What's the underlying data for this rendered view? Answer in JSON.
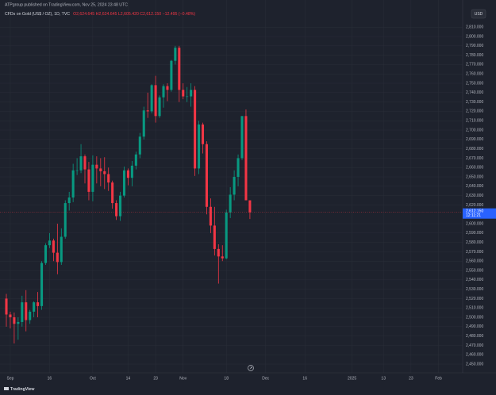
{
  "chart_data": {
    "type": "candlestick",
    "publisher_note": "ATPgroup published on TradingView.com, Nov 25, 2024 23:48 UTC",
    "title": "CFDs on Gold (US$ / OZ), 1D, TVC",
    "ohlc_text": "O2,624.645 H2,624.645 L2,605.420 C2,612.150 −12.495 (−0.48%)",
    "currency": "USD",
    "logo": "TradingView",
    "up_color": "#089981",
    "down_color": "#f23645",
    "grid": true,
    "last_price": {
      "value": 2612.15,
      "label": "2,612.150"
    },
    "countdown": "12:11:21",
    "open": [
      2520,
      2503,
      2500,
      2493,
      2495,
      2516,
      2497,
      2506,
      2516,
      2512,
      2558,
      2577,
      2582,
      2569,
      2559,
      2586,
      2622,
      2628,
      2657,
      2657,
      2672,
      2658,
      2634,
      2663,
      2659,
      2656,
      2653,
      2644,
      2622,
      2608,
      2630,
      2657,
      2649,
      2662,
      2674,
      2693,
      2721,
      2720,
      2748,
      2715,
      2735,
      2747,
      2743,
      2774,
      2788,
      2743,
      2736,
      2736,
      2743,
      2659,
      2706,
      2685,
      2618,
      2598,
      2573,
      2565,
      2563,
      2612,
      2631,
      2650,
      2670,
      2715,
      2625
    ],
    "high": [
      2525,
      2506,
      2505,
      2500,
      2523,
      2529,
      2508,
      2517,
      2527,
      2560,
      2579,
      2590,
      2584,
      2600,
      2595,
      2625,
      2634,
      2664,
      2670,
      2685,
      2674,
      2666,
      2673,
      2672,
      2670,
      2671,
      2660,
      2646,
      2625,
      2634,
      2661,
      2659,
      2667,
      2677,
      2697,
      2725,
      2740,
      2749,
      2758,
      2737,
      2749,
      2750,
      2775,
      2790,
      2790,
      2750,
      2746,
      2750,
      2747,
      2710,
      2708,
      2688,
      2627,
      2618,
      2578,
      2577,
      2615,
      2639,
      2657,
      2674,
      2715,
      2722,
      2625
    ],
    "low": [
      2490,
      2488,
      2472,
      2476,
      2490,
      2485,
      2493,
      2500,
      2500,
      2508,
      2556,
      2574,
      2560,
      2546,
      2556,
      2584,
      2614,
      2623,
      2652,
      2654,
      2643,
      2625,
      2624,
      2643,
      2640,
      2637,
      2635,
      2616,
      2604,
      2603,
      2628,
      2641,
      2640,
      2658,
      2670,
      2690,
      2713,
      2718,
      2708,
      2713,
      2724,
      2731,
      2741,
      2770,
      2730,
      2733,
      2730,
      2725,
      2651,
      2653,
      2675,
      2610,
      2590,
      2566,
      2536,
      2560,
      2562,
      2606,
      2625,
      2640,
      2668,
      2625,
      2605
    ],
    "close": [
      2503,
      2500,
      2493,
      2495,
      2516,
      2497,
      2506,
      2516,
      2512,
      2558,
      2577,
      2582,
      2569,
      2559,
      2586,
      2622,
      2628,
      2657,
      2657,
      2672,
      2658,
      2634,
      2663,
      2659,
      2656,
      2653,
      2644,
      2622,
      2608,
      2630,
      2657,
      2649,
      2662,
      2674,
      2693,
      2721,
      2720,
      2748,
      2715,
      2735,
      2747,
      2743,
      2774,
      2788,
      2743,
      2736,
      2736,
      2743,
      2659,
      2706,
      2685,
      2618,
      2598,
      2573,
      2565,
      2563,
      2612,
      2631,
      2650,
      2670,
      2715,
      2625,
      2612.15
    ],
    "xlim": [
      -1.616,
      116.16
    ],
    "xticks": [
      {
        "value": 1,
        "label": "Sep"
      },
      {
        "value": 11,
        "label": "16"
      },
      {
        "value": 22,
        "label": "Oct"
      },
      {
        "value": 31,
        "label": "14"
      },
      {
        "value": 38,
        "label": "23"
      },
      {
        "value": 45,
        "label": "Nov"
      },
      {
        "value": 56,
        "label": "18"
      },
      {
        "value": 66,
        "label": "Dec"
      },
      {
        "value": 76,
        "label": "16"
      },
      {
        "value": 88,
        "label": "2025"
      },
      {
        "value": 96,
        "label": "13"
      },
      {
        "value": 103,
        "label": "23"
      },
      {
        "value": 110,
        "label": "Feb"
      }
    ],
    "ylim": [
      2440.7,
      2839
    ],
    "yticks": [
      {
        "value": 2450,
        "label": "2,450.000"
      },
      {
        "value": 2460,
        "label": "2,460.000"
      },
      {
        "value": 2470,
        "label": "2,470.000"
      },
      {
        "value": 2480,
        "label": "2,480.000"
      },
      {
        "value": 2490,
        "label": "2,490.000"
      },
      {
        "value": 2500,
        "label": "2,500.000"
      },
      {
        "value": 2510,
        "label": "2,510.000"
      },
      {
        "value": 2520,
        "label": "2,520.000"
      },
      {
        "value": 2530,
        "label": "2,530.000"
      },
      {
        "value": 2540,
        "label": "2,540.000"
      },
      {
        "value": 2550,
        "label": "2,550.000"
      },
      {
        "value": 2560,
        "label": "2,560.000"
      },
      {
        "value": 2570,
        "label": "2,570.000"
      },
      {
        "value": 2580,
        "label": "2,580.000"
      },
      {
        "value": 2590,
        "label": "2,590.000"
      },
      {
        "value": 2600,
        "label": "2,600.000"
      },
      {
        "value": 2620,
        "label": "2,620.000"
      },
      {
        "value": 2630,
        "label": "2,630.000"
      },
      {
        "value": 2640,
        "label": "2,640.000"
      },
      {
        "value": 2650,
        "label": "2,650.000"
      },
      {
        "value": 2660,
        "label": "2,660.000"
      },
      {
        "value": 2670,
        "label": "2,670.000"
      },
      {
        "value": 2680,
        "label": "2,680.000"
      },
      {
        "value": 2690,
        "label": "2,690.000"
      },
      {
        "value": 2700,
        "label": "2,700.000"
      },
      {
        "value": 2710,
        "label": "2,710.000"
      },
      {
        "value": 2720,
        "label": "2,720.000"
      },
      {
        "value": 2730,
        "label": "2,730.000"
      },
      {
        "value": 2740,
        "label": "2,740.000"
      },
      {
        "value": 2750,
        "label": "2,750.000"
      },
      {
        "value": 2760,
        "label": "2,760.000"
      },
      {
        "value": 2770,
        "label": "2,770.000"
      },
      {
        "value": 2780,
        "label": "2,780.000"
      },
      {
        "value": 2790,
        "label": "2,790.000"
      },
      {
        "value": 2800,
        "label": "2,800.000"
      },
      {
        "value": 2810,
        "label": "2,810.000"
      }
    ]
  }
}
